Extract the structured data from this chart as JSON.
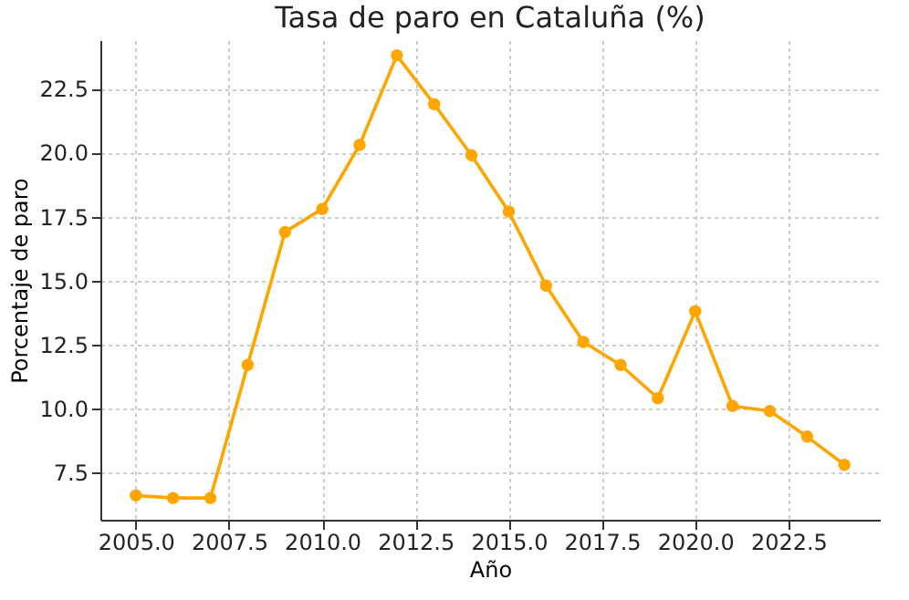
{
  "chart_data": {
    "type": "line",
    "title": "Tasa de paro en Cataluña (%)",
    "xlabel": "Año",
    "ylabel": "Porcentaje de paro",
    "x": [
      2005,
      2006,
      2007,
      2008,
      2009,
      2010,
      2011,
      2012,
      2013,
      2014,
      2015,
      2016,
      2017,
      2018,
      2019,
      2020,
      2021,
      2022,
      2023,
      2024
    ],
    "series": [
      {
        "color": "#ffa500",
        "values": [
          6.6,
          6.5,
          6.5,
          11.7,
          16.9,
          17.8,
          20.3,
          23.8,
          21.9,
          19.9,
          17.7,
          14.8,
          12.6,
          11.7,
          10.4,
          13.8,
          10.1,
          9.9,
          8.9,
          7.8
        ]
      }
    ],
    "xlim": [
      2004.05,
      2024.95
    ],
    "ylim": [
      5.65,
      24.4
    ],
    "xticks": [
      {
        "value": 2005,
        "label": "2005.0"
      },
      {
        "value": 2007.5,
        "label": "2007.5"
      },
      {
        "value": 2010,
        "label": "2010.0"
      },
      {
        "value": 2012.5,
        "label": "2012.5"
      },
      {
        "value": 2015,
        "label": "2015.0"
      },
      {
        "value": 2017.5,
        "label": "2017.5"
      },
      {
        "value": 2020,
        "label": "2020.0"
      },
      {
        "value": 2022.5,
        "label": "2022.5"
      }
    ],
    "yticks": [
      {
        "value": 7.5,
        "label": "7.5"
      },
      {
        "value": 10,
        "label": "10.0"
      },
      {
        "value": 12.5,
        "label": "12.5"
      },
      {
        "value": 15,
        "label": "15.0"
      },
      {
        "value": 17.5,
        "label": "17.5"
      },
      {
        "value": 20,
        "label": "20.0"
      },
      {
        "value": 22.5,
        "label": "22.5"
      }
    ],
    "grid": true,
    "marker": "circle",
    "line_style": "solid"
  }
}
